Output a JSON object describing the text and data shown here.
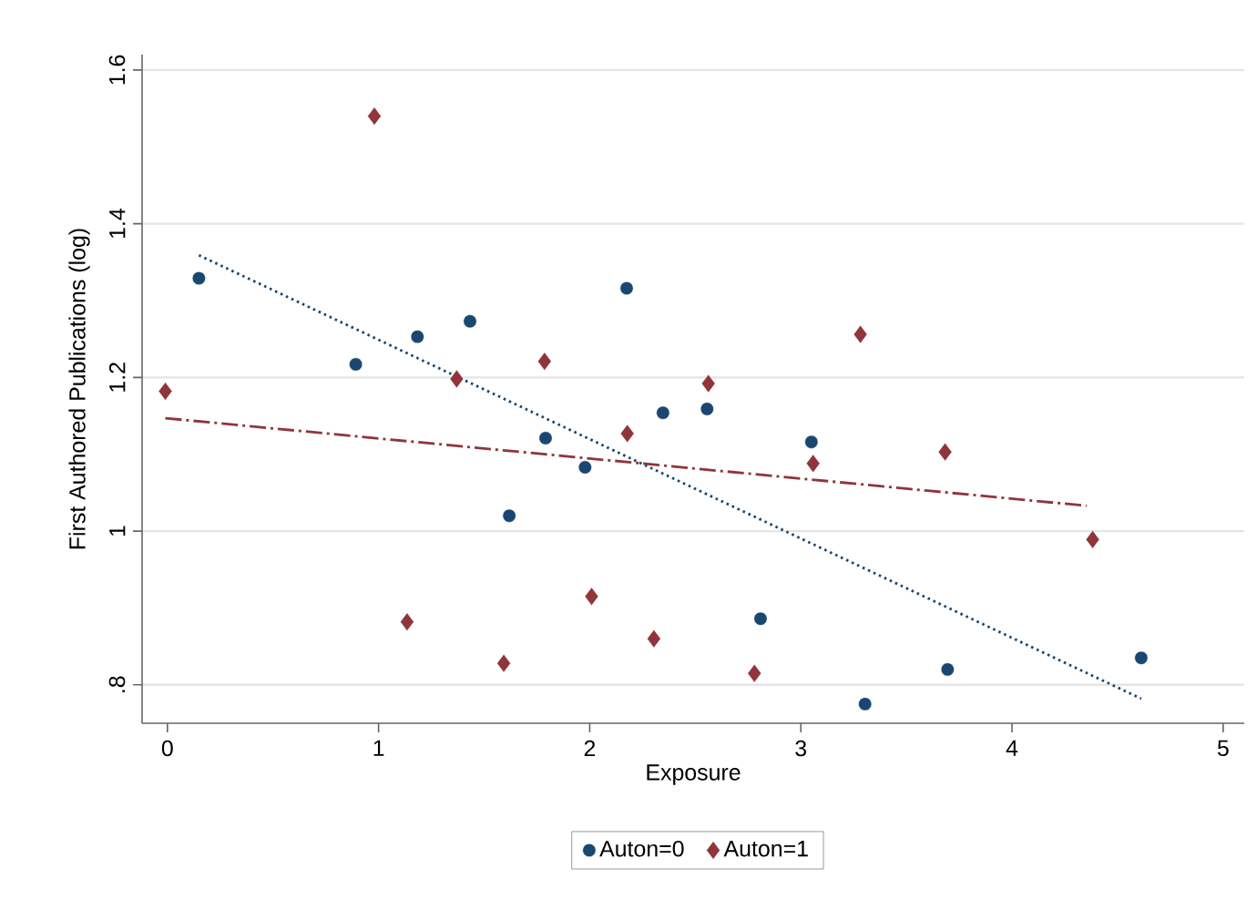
{
  "chart_data": {
    "type": "scatter",
    "xlabel": "Exposure",
    "ylabel": "First Authored Publications (log)",
    "xlim": [
      -0.12,
      5.1
    ],
    "ylim": [
      0.75,
      1.62
    ],
    "xticks": [
      0,
      1,
      2,
      3,
      4,
      5
    ],
    "yticks": [
      {
        "value": 0.8,
        "label": ".8"
      },
      1,
      1.2,
      1.4,
      1.6
    ],
    "grid": "y",
    "legend": "bottom",
    "series": [
      {
        "name": "Auton=0",
        "marker": "circle",
        "color": "#1a476f",
        "x": [
          0.149,
          0.892,
          1.184,
          1.433,
          2.175,
          2.347,
          1.791,
          1.978,
          1.619,
          2.556,
          3.05,
          2.809,
          3.304,
          3.695,
          4.612
        ],
        "values": [
          1.329,
          1.217,
          1.253,
          1.273,
          1.316,
          1.154,
          1.121,
          1.083,
          1.02,
          1.159,
          1.116,
          0.886,
          0.775,
          0.82,
          0.835
        ]
      },
      {
        "name": "Auton=1",
        "marker": "diamond",
        "color": "#90353b",
        "x": [
          -0.01,
          0.98,
          1.37,
          1.786,
          2.178,
          1.135,
          1.593,
          2.009,
          2.304,
          2.562,
          3.058,
          3.282,
          3.683,
          2.78,
          4.382
        ],
        "values": [
          1.182,
          1.54,
          1.198,
          1.221,
          1.127,
          0.882,
          0.828,
          0.915,
          0.86,
          1.192,
          1.088,
          1.256,
          1.103,
          0.815,
          0.989
        ]
      },
      {
        "type": "line",
        "line_style": "dotted",
        "color": "#1a476f",
        "x": [
          0.149,
          4.612
        ],
        "values": [
          1.359,
          0.782
        ]
      },
      {
        "type": "line",
        "line_style": "dashed",
        "color": "#90353b",
        "x": [
          -0.01,
          4.353
        ],
        "values": [
          1.147,
          1.033
        ]
      }
    ]
  }
}
